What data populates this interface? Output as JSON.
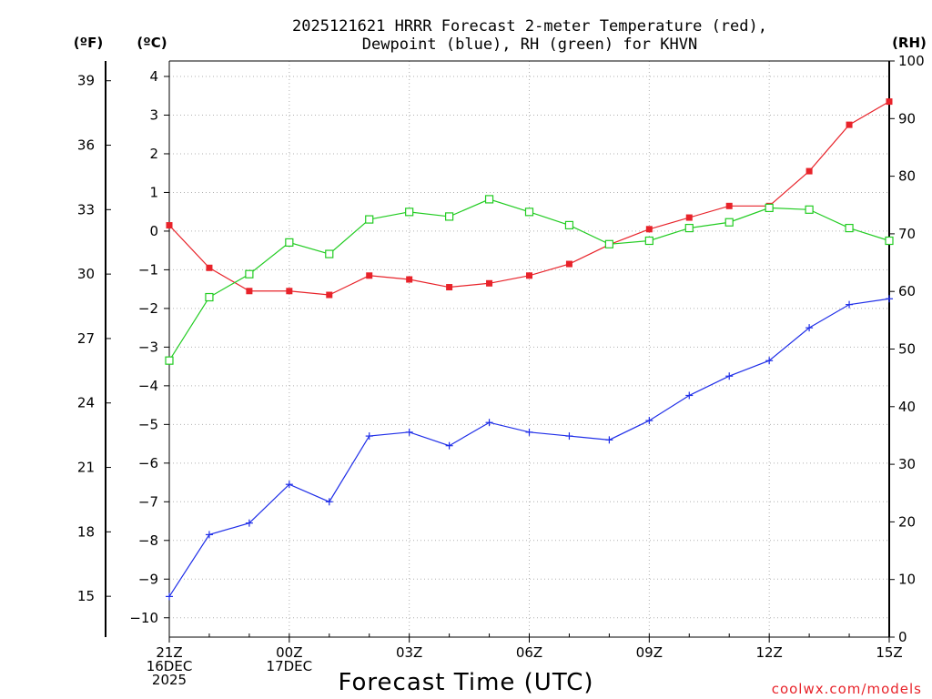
{
  "chart_data": {
    "type": "line",
    "title_line1": "2025121621 HRRR Forecast 2-meter Temperature (red),",
    "title_line2": "Dewpoint (blue), RH (green) for KHVN",
    "unit_f": "(ºF)",
    "unit_c": "(ºC)",
    "unit_rh": "(RH)",
    "xlabel": "Forecast Time (UTC)",
    "credit": "coolwx.com/models",
    "x_hours": [
      0,
      1,
      2,
      3,
      4,
      5,
      6,
      7,
      8,
      9,
      10,
      11,
      12,
      13,
      14,
      15,
      16,
      17,
      18
    ],
    "x_tick_labels": [
      {
        "hour": 0,
        "lines": [
          "21Z",
          "16DEC",
          "2025"
        ]
      },
      {
        "hour": 3,
        "lines": [
          "00Z",
          "17DEC"
        ]
      },
      {
        "hour": 6,
        "lines": [
          "03Z"
        ]
      },
      {
        "hour": 9,
        "lines": [
          "06Z"
        ]
      },
      {
        "hour": 12,
        "lines": [
          "09Z"
        ]
      },
      {
        "hour": 15,
        "lines": [
          "12Z"
        ]
      },
      {
        "hour": 18,
        "lines": [
          "15Z"
        ]
      }
    ],
    "c_axis": {
      "min": -10.5,
      "max": 4.4,
      "ticks": [
        "4",
        "3",
        "2",
        "1",
        "0",
        "−1",
        "−2",
        "−3",
        "−4",
        "−5",
        "−6",
        "−7",
        "−8",
        "−9",
        "−10"
      ],
      "tick_values": [
        4,
        3,
        2,
        1,
        0,
        -1,
        -2,
        -3,
        -4,
        -5,
        -6,
        -7,
        -8,
        -9,
        -10
      ]
    },
    "f_axis": {
      "ticks": [
        "39",
        "36",
        "33",
        "30",
        "27",
        "24",
        "21",
        "18",
        "15"
      ],
      "tick_values": [
        39,
        36,
        33,
        30,
        27,
        24,
        21,
        18,
        15
      ]
    },
    "rh_axis": {
      "min": 0,
      "max": 100,
      "ticks": [
        "100",
        "90",
        "80",
        "70",
        "60",
        "50",
        "40",
        "30",
        "20",
        "10",
        "0"
      ],
      "tick_values": [
        100,
        90,
        80,
        70,
        60,
        50,
        40,
        30,
        20,
        10,
        0
      ]
    },
    "series": [
      {
        "name": "Temperature",
        "unit": "C",
        "color": "#e8232a",
        "marker": "filled-square",
        "values": [
          0.15,
          -0.95,
          -1.55,
          -1.55,
          -1.65,
          -1.15,
          -1.25,
          -1.45,
          -1.35,
          -1.15,
          -0.85,
          -0.35,
          0.05,
          0.35,
          0.65,
          0.65,
          1.55,
          2.75,
          3.35
        ]
      },
      {
        "name": "Dewpoint",
        "unit": "C",
        "color": "#1f2ee8",
        "marker": "plus",
        "values": [
          -9.45,
          -7.85,
          -7.55,
          -6.55,
          -7.0,
          -5.3,
          -5.2,
          -5.55,
          -4.95,
          -5.2,
          -5.3,
          -5.4,
          -4.9,
          -4.25,
          -3.75,
          -3.35,
          -2.5,
          -1.9,
          -1.75
        ]
      },
      {
        "name": "RH",
        "unit": "%",
        "color": "#22cc22",
        "marker": "open-square",
        "values": [
          48.0,
          59.0,
          63.0,
          68.5,
          66.5,
          72.5,
          73.8,
          73.0,
          76.0,
          73.8,
          71.5,
          68.2,
          68.8,
          71.0,
          72.0,
          74.5,
          74.2,
          71.0,
          68.8
        ]
      }
    ]
  }
}
